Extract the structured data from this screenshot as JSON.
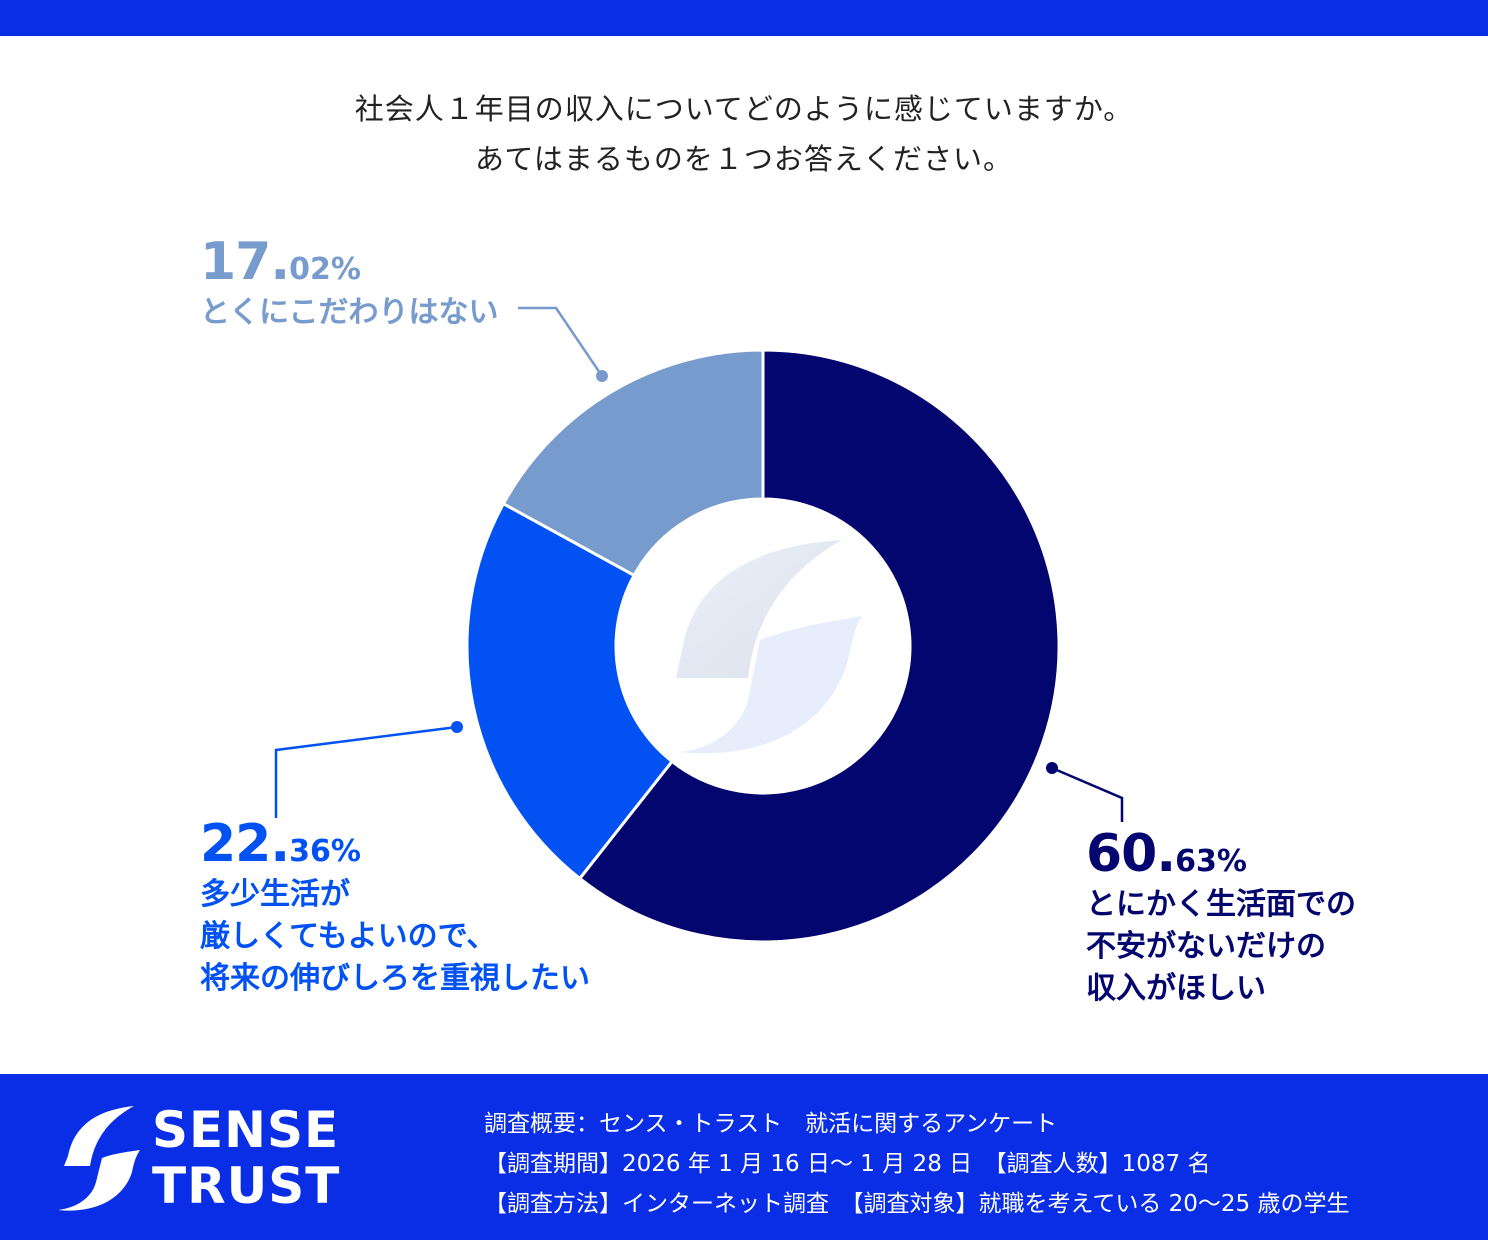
{
  "question": {
    "line1": "社会人１年目の収入についてどのように感じていますか。",
    "line2": "あてはまるものを１つお答えください。"
  },
  "chart_data": {
    "type": "pie",
    "categories": [
      "とにかく生活面での不安がないだけの収入がほしい",
      "多少生活が厳しくてもよいので、将来の伸びしろを重視したい",
      "とくにこだわりはない"
    ],
    "values": [
      60.63,
      22.36,
      17.02
    ],
    "colors": [
      "#04066f",
      "#0151f3",
      "#779bcc"
    ],
    "labels": [
      {
        "pct_int": "60.",
        "pct_dec": "63%",
        "lines": [
          "とにかく生活面での",
          "不安がないだけの",
          "収入がほしい"
        ]
      },
      {
        "pct_int": "22.",
        "pct_dec": "36%",
        "lines": [
          "多少生活が",
          "厳しくてもよいので、",
          "将来の伸びしろを重視したい"
        ]
      },
      {
        "pct_int": "17.",
        "pct_dec": "02%",
        "lines": [
          "とくにこだわりはない"
        ]
      }
    ]
  },
  "brand": {
    "line1": "SENSE",
    "line2": "TRUST"
  },
  "survey": {
    "line1": "調査概要：センス・トラスト　就活に関するアンケート",
    "line2": "【調査期間】2026 年 1 月 16 日～ 1 月 28 日　【調査人数】1087 名",
    "line3": "【調査方法】インターネット調査　【調査対象】就職を考えている 20～25 歳の学生"
  },
  "colors": {
    "accent": "#0a2ee6"
  }
}
